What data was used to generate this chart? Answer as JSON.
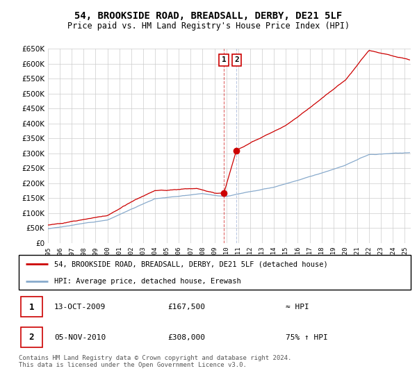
{
  "title": "54, BROOKSIDE ROAD, BREADSALL, DERBY, DE21 5LF",
  "subtitle": "Price paid vs. HM Land Registry's House Price Index (HPI)",
  "legend_line1": "54, BROOKSIDE ROAD, BREADSALL, DERBY, DE21 5LF (detached house)",
  "legend_line2": "HPI: Average price, detached house, Erewash",
  "footnote": "Contains HM Land Registry data © Crown copyright and database right 2024.\nThis data is licensed under the Open Government Licence v3.0.",
  "annotation1_date": "13-OCT-2009",
  "annotation1_price": "£167,500",
  "annotation1_hpi": "≈ HPI",
  "annotation2_date": "05-NOV-2010",
  "annotation2_price": "£308,000",
  "annotation2_hpi": "75% ↑ HPI",
  "ylim": [
    0,
    650000
  ],
  "yticks": [
    0,
    50000,
    100000,
    150000,
    200000,
    250000,
    300000,
    350000,
    400000,
    450000,
    500000,
    550000,
    600000,
    650000
  ],
  "xlim_start": 1995.0,
  "xlim_end": 2025.5,
  "transaction1_x": 2009.79,
  "transaction1_y": 167500,
  "transaction2_x": 2010.85,
  "transaction2_y": 308000,
  "red_color": "#cc0000",
  "blue_color": "#88aacc",
  "bg_color": "#ffffff",
  "grid_color": "#cccccc",
  "vline1_color": "#cc0000",
  "vline2_color": "#aabbdd"
}
